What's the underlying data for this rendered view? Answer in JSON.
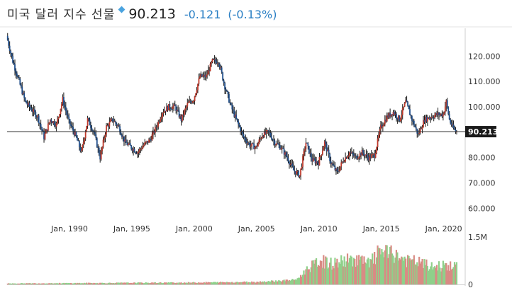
{
  "header": {
    "title": "미국 달러 지수 선물",
    "price": "90.213",
    "change": "-0.121",
    "change_pct": "(-0.13%)",
    "change_color": "#2a7fc4"
  },
  "colors": {
    "up": "#c0392b",
    "down": "#1f4e8c",
    "wick": "#1a1a1a",
    "vol_up": "#8fd08a",
    "vol_down": "#d98b84",
    "last_price_line": "#333333",
    "last_price_box": "#1a1a1a"
  },
  "chart_data": {
    "type": "candlestick",
    "title": "미국 달러 지수 선물",
    "last_value": 90.213,
    "last_label": "90.213",
    "ylim": [
      57,
      131
    ],
    "yticks": [
      {
        "v": 120,
        "label": "120.000"
      },
      {
        "v": 110,
        "label": "110.000"
      },
      {
        "v": 100,
        "label": "100.000"
      },
      {
        "v": 80,
        "label": "80.000"
      },
      {
        "v": 70,
        "label": "70.000"
      },
      {
        "v": 60,
        "label": "60.000"
      }
    ],
    "xlim": [
      1985.0,
      2021.5
    ],
    "xticks": [
      {
        "v": 1990,
        "label": "Jan, 1990"
      },
      {
        "v": 1995,
        "label": "Jan, 1995"
      },
      {
        "v": 2000,
        "label": "Jan, 2000"
      },
      {
        "v": 2005,
        "label": "Jan, 2005"
      },
      {
        "v": 2010,
        "label": "Jan, 2010"
      },
      {
        "v": 2015,
        "label": "Jan, 2015"
      },
      {
        "v": 2020,
        "label": "Jan, 2020"
      }
    ],
    "price_series": [
      [
        1985.0,
        128
      ],
      [
        1985.5,
        118
      ],
      [
        1986.0,
        110
      ],
      [
        1986.5,
        102
      ],
      [
        1987.0,
        99
      ],
      [
        1987.5,
        96
      ],
      [
        1988.0,
        88
      ],
      [
        1988.5,
        95
      ],
      [
        1989.0,
        93
      ],
      [
        1989.5,
        103
      ],
      [
        1990.0,
        94
      ],
      [
        1990.5,
        89
      ],
      [
        1991.0,
        82
      ],
      [
        1991.5,
        95
      ],
      [
        1992.0,
        90
      ],
      [
        1992.5,
        80
      ],
      [
        1993.0,
        92
      ],
      [
        1993.5,
        95
      ],
      [
        1994.0,
        92
      ],
      [
        1994.5,
        86
      ],
      [
        1995.0,
        84
      ],
      [
        1995.5,
        82
      ],
      [
        1996.0,
        85
      ],
      [
        1996.5,
        87
      ],
      [
        1997.0,
        92
      ],
      [
        1997.5,
        98
      ],
      [
        1998.0,
        100
      ],
      [
        1998.5,
        100
      ],
      [
        1999.0,
        95
      ],
      [
        1999.5,
        101
      ],
      [
        2000.0,
        103
      ],
      [
        2000.5,
        112
      ],
      [
        2001.0,
        112
      ],
      [
        2001.5,
        118
      ],
      [
        2002.0,
        118
      ],
      [
        2002.5,
        108
      ],
      [
        2003.0,
        100
      ],
      [
        2003.5,
        94
      ],
      [
        2004.0,
        88
      ],
      [
        2004.5,
        85
      ],
      [
        2005.0,
        84
      ],
      [
        2005.5,
        89
      ],
      [
        2006.0,
        90
      ],
      [
        2006.5,
        86
      ],
      [
        2007.0,
        84
      ],
      [
        2007.5,
        80
      ],
      [
        2008.0,
        75
      ],
      [
        2008.5,
        73
      ],
      [
        2009.0,
        86
      ],
      [
        2009.5,
        79
      ],
      [
        2010.0,
        78
      ],
      [
        2010.5,
        86
      ],
      [
        2011.0,
        78
      ],
      [
        2011.5,
        74
      ],
      [
        2012.0,
        79
      ],
      [
        2012.5,
        82
      ],
      [
        2013.0,
        80
      ],
      [
        2013.5,
        82
      ],
      [
        2014.0,
        80
      ],
      [
        2014.5,
        81
      ],
      [
        2015.0,
        92
      ],
      [
        2015.5,
        96
      ],
      [
        2016.0,
        98
      ],
      [
        2016.5,
        95
      ],
      [
        2017.0,
        102
      ],
      [
        2017.5,
        95
      ],
      [
        2018.0,
        89
      ],
      [
        2018.5,
        95
      ],
      [
        2019.0,
        96
      ],
      [
        2019.5,
        97
      ],
      [
        2020.0,
        97
      ],
      [
        2020.25,
        102
      ],
      [
        2020.5,
        95
      ],
      [
        2020.75,
        92
      ],
      [
        2021.0,
        90.2
      ]
    ],
    "volume": {
      "ylim": [
        0,
        1500000
      ],
      "yticks": [
        {
          "v": 1500000,
          "label": "1.5M"
        },
        {
          "v": 0,
          "label": "0"
        }
      ],
      "series": [
        [
          1985.0,
          30000
        ],
        [
          1990.0,
          40000
        ],
        [
          1995.0,
          50000
        ],
        [
          2000.0,
          60000
        ],
        [
          2005.0,
          80000
        ],
        [
          2008.0,
          140000
        ],
        [
          2008.5,
          250000
        ],
        [
          2009.0,
          500000
        ],
        [
          2009.5,
          600000
        ],
        [
          2010.0,
          750000
        ],
        [
          2011.0,
          650000
        ],
        [
          2012.0,
          750000
        ],
        [
          2013.0,
          800000
        ],
        [
          2014.0,
          650000
        ],
        [
          2015.0,
          1100000
        ],
        [
          2015.5,
          950000
        ],
        [
          2016.0,
          950000
        ],
        [
          2017.0,
          750000
        ],
        [
          2018.0,
          700000
        ],
        [
          2019.0,
          550000
        ],
        [
          2020.0,
          600000
        ],
        [
          2021.0,
          550000
        ]
      ]
    }
  }
}
